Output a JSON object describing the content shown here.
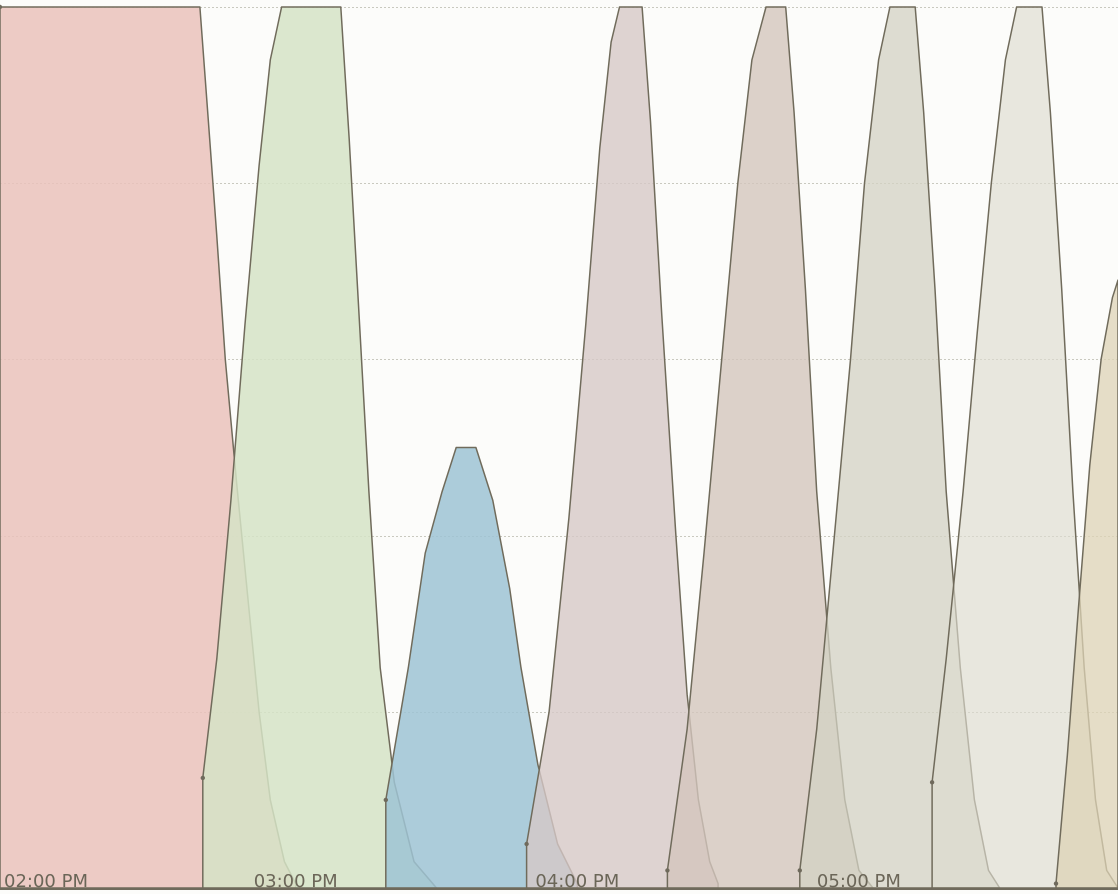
{
  "chart_data": {
    "type": "area",
    "title": "",
    "xlabel": "",
    "ylabel": "",
    "grid": true,
    "legend": "none",
    "x_range": [
      13.95,
      17.92
    ],
    "y_range": [
      0,
      100
    ],
    "ytick_values": [
      0,
      20,
      40,
      60,
      80,
      100
    ],
    "xticks": [
      {
        "t": 14.0,
        "label": "02:00 PM"
      },
      {
        "t": 15.0,
        "label": "03:00 PM"
      },
      {
        "t": 16.0,
        "label": "04:00 PM"
      },
      {
        "t": 17.0,
        "label": "05:00 PM"
      }
    ],
    "series": [
      {
        "color": "#eac2bb",
        "opacity": 0.85,
        "points": [
          [
            13.95,
            100
          ],
          [
            14.66,
            100
          ],
          [
            14.69,
            87
          ],
          [
            14.72,
            74
          ],
          [
            14.75,
            60
          ],
          [
            14.79,
            46
          ],
          [
            14.83,
            33
          ],
          [
            14.87,
            20
          ],
          [
            14.91,
            10
          ],
          [
            14.96,
            3
          ],
          [
            15.0,
            0.5
          ]
        ]
      },
      {
        "color": "#d5e3c6",
        "opacity": 0.85,
        "points": [
          [
            14.67,
            12.5
          ],
          [
            14.72,
            26
          ],
          [
            14.77,
            44
          ],
          [
            14.82,
            64
          ],
          [
            14.87,
            82
          ],
          [
            14.91,
            94
          ],
          [
            14.95,
            100
          ],
          [
            15.16,
            100
          ],
          [
            15.19,
            85
          ],
          [
            15.22,
            68
          ],
          [
            15.26,
            45
          ],
          [
            15.3,
            25
          ],
          [
            15.35,
            12
          ],
          [
            15.42,
            3
          ],
          [
            15.5,
            0
          ]
        ]
      },
      {
        "color": "#9ec3d4",
        "opacity": 0.85,
        "points": [
          [
            15.32,
            10
          ],
          [
            15.4,
            25
          ],
          [
            15.46,
            38
          ],
          [
            15.52,
            45
          ],
          [
            15.57,
            50
          ],
          [
            15.64,
            50
          ],
          [
            15.7,
            44
          ],
          [
            15.76,
            34
          ],
          [
            15.8,
            25
          ],
          [
            15.86,
            14
          ],
          [
            15.93,
            5
          ],
          [
            16.0,
            0.5
          ]
        ]
      },
      {
        "color": "#d6c8c7",
        "opacity": 0.8,
        "points": [
          [
            15.82,
            5
          ],
          [
            15.9,
            20
          ],
          [
            15.97,
            42
          ],
          [
            16.03,
            64
          ],
          [
            16.08,
            84
          ],
          [
            16.12,
            96
          ],
          [
            16.15,
            100
          ],
          [
            16.23,
            100
          ],
          [
            16.26,
            87
          ],
          [
            16.3,
            65
          ],
          [
            16.35,
            40
          ],
          [
            16.39,
            22
          ],
          [
            16.43,
            10
          ],
          [
            16.47,
            3
          ],
          [
            16.5,
            0.5
          ]
        ]
      },
      {
        "color": "#d3c6bd",
        "opacity": 0.8,
        "points": [
          [
            16.32,
            2
          ],
          [
            16.39,
            18
          ],
          [
            16.45,
            38
          ],
          [
            16.51,
            59
          ],
          [
            16.57,
            80
          ],
          [
            16.62,
            94
          ],
          [
            16.67,
            100
          ],
          [
            16.74,
            100
          ],
          [
            16.77,
            88
          ],
          [
            16.81,
            68
          ],
          [
            16.85,
            45
          ],
          [
            16.9,
            25
          ],
          [
            16.95,
            10
          ],
          [
            17.0,
            2
          ],
          [
            17.05,
            0
          ]
        ]
      },
      {
        "color": "#d3d1c3",
        "opacity": 0.75,
        "points": [
          [
            16.79,
            2
          ],
          [
            16.85,
            18
          ],
          [
            16.91,
            39
          ],
          [
            16.97,
            60
          ],
          [
            17.02,
            80
          ],
          [
            17.07,
            94
          ],
          [
            17.11,
            100
          ],
          [
            17.2,
            100
          ],
          [
            17.23,
            88
          ],
          [
            17.27,
            68
          ],
          [
            17.31,
            45
          ],
          [
            17.36,
            25
          ],
          [
            17.41,
            10
          ],
          [
            17.46,
            2
          ],
          [
            17.5,
            0
          ]
        ]
      },
      {
        "color": "#dddbd0",
        "opacity": 0.65,
        "points": [
          [
            17.26,
            12
          ],
          [
            17.31,
            26
          ],
          [
            17.37,
            45
          ],
          [
            17.42,
            63
          ],
          [
            17.47,
            80
          ],
          [
            17.52,
            94
          ],
          [
            17.56,
            100
          ],
          [
            17.65,
            100
          ],
          [
            17.68,
            88
          ],
          [
            17.72,
            68
          ],
          [
            17.76,
            45
          ],
          [
            17.8,
            25
          ],
          [
            17.84,
            10
          ],
          [
            17.88,
            2
          ],
          [
            17.92,
            0
          ]
        ]
      },
      {
        "color": "#ddd3b5",
        "opacity": 0.75,
        "points": [
          [
            17.7,
            0.5
          ],
          [
            17.74,
            15
          ],
          [
            17.78,
            32
          ],
          [
            17.82,
            48
          ],
          [
            17.86,
            60
          ],
          [
            17.9,
            67
          ],
          [
            17.92,
            69
          ]
        ]
      }
    ]
  }
}
